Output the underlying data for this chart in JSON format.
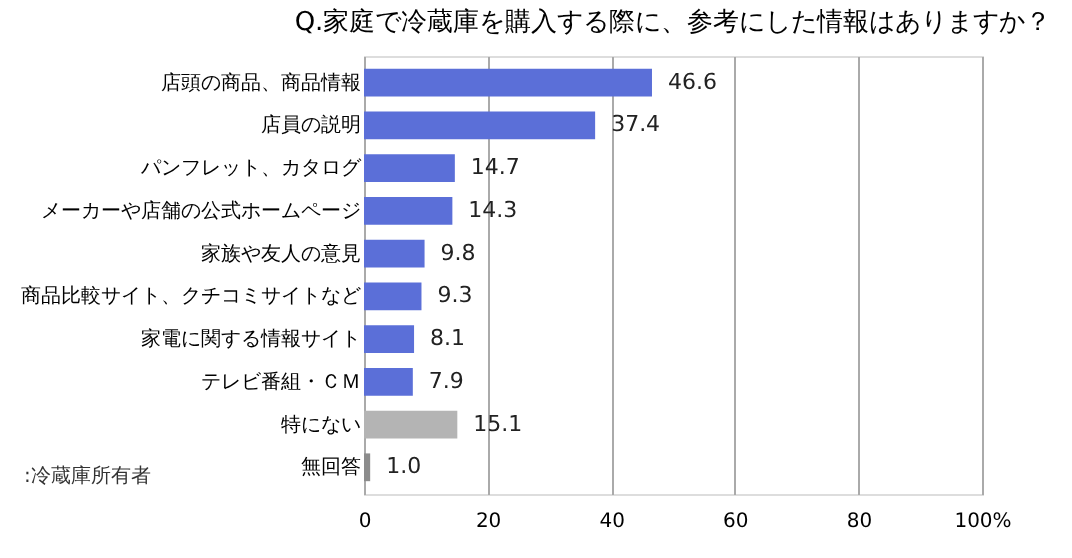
{
  "chart_data": {
    "type": "bar",
    "orientation": "horizontal",
    "title": "Q.家庭で冷蔵庫を購入する際に、参考にした情報はありますか？",
    "categories": [
      "店頭の商品、商品情報",
      "店員の説明",
      "パンフレット、カタログ",
      "メーカーや店舗の公式ホームページ",
      "家族や友人の意見",
      "商品比較サイト、クチコミサイトなど",
      "家電に関する情報サイト",
      "テレビ番組・ＣＭ",
      "特にない",
      "無回答"
    ],
    "values": [
      46.6,
      37.4,
      14.7,
      14.3,
      9.8,
      9.3,
      8.1,
      7.9,
      15.1,
      1.0
    ],
    "colors": [
      "#5b6fd8",
      "#5b6fd8",
      "#5b6fd8",
      "#5b6fd8",
      "#5b6fd8",
      "#5b6fd8",
      "#5b6fd8",
      "#5b6fd8",
      "#b4b4b4",
      "#8c8c8c"
    ],
    "value_labels": [
      "46.6",
      "37.4",
      "14.7",
      "14.3",
      "9.8",
      "9.3",
      "8.1",
      "7.9",
      "15.1",
      "1.0"
    ],
    "xlim": [
      0,
      100
    ],
    "xticks": [
      0,
      20,
      40,
      60,
      80,
      {
        "value": 100,
        "label": "100%"
      }
    ],
    "grid": "x",
    "annotations": [
      ":冷蔵庫所有者"
    ]
  }
}
